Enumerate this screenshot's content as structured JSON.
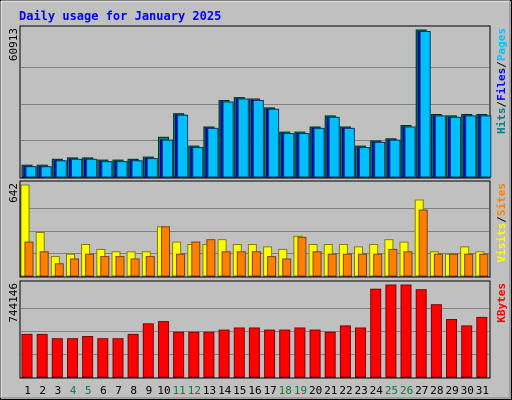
{
  "chart_data": {
    "type": "bar",
    "title": "Daily usage for January 2025",
    "categories": [
      "1",
      "2",
      "3",
      "4",
      "5",
      "6",
      "7",
      "8",
      "9",
      "10",
      "11",
      "12",
      "13",
      "14",
      "15",
      "16",
      "17",
      "18",
      "19",
      "20",
      "21",
      "22",
      "23",
      "24",
      "25",
      "26",
      "27",
      "28",
      "29",
      "30",
      "31"
    ],
    "weekend_days": [
      "4",
      "5",
      "11",
      "12",
      "18",
      "19",
      "25",
      "26"
    ],
    "panels": [
      {
        "name": "top",
        "ymax_label": "60913",
        "ylim": [
          0,
          60913
        ],
        "right_labels": [
          "Pages",
          "Files",
          "Hits"
        ],
        "series": [
          {
            "name": "Hits",
            "color": "#00805c",
            "values": [
              4876,
              4876,
              7316,
              7925,
              7925,
              7011,
              7011,
              7316,
              8230,
              16460,
              26214,
              12802,
              20728,
              31700,
              32918,
              32308,
              28651,
              18593,
              18593,
              20728,
              25299,
              20728,
              12802,
              14935,
              15849,
              21338,
              60913,
              25909,
              25299,
              25909,
              25909
            ]
          },
          {
            "name": "Files",
            "color": "#0000ff",
            "values": [
              4267,
              4267,
              6706,
              7316,
              7316,
              6401,
              6401,
              6706,
              7620,
              15240,
              25604,
              12192,
              20118,
              31090,
              32308,
              31700,
              28042,
              17983,
              17983,
              20118,
              24690,
              20118,
              12192,
              14326,
              15240,
              20728,
              60303,
              25299,
              24690,
              25299,
              25299
            ]
          },
          {
            "name": "Pages",
            "color": "#00bfff",
            "values": [
              4267,
              4267,
              6706,
              7316,
              7316,
              6401,
              6401,
              6706,
              7620,
              15240,
              25604,
              12192,
              20118,
              31090,
              32308,
              31700,
              28042,
              17983,
              17983,
              20118,
              24690,
              20118,
              12192,
              14326,
              15240,
              20728,
              60303,
              25299,
              24690,
              25299,
              25299
            ]
          }
        ]
      },
      {
        "name": "middle",
        "ymax_label": "642",
        "ylim": [
          0,
          642
        ],
        "right_labels": [
          "Sites",
          "Visits"
        ],
        "series": [
          {
            "name": "Visits",
            "color": "#ffff00",
            "values": [
              642,
              307,
              137,
              154,
              222,
              188,
              171,
              171,
              171,
              347,
              239,
              222,
              222,
              256,
              222,
              222,
              205,
              188,
              280,
              222,
              222,
              222,
              205,
              222,
              256,
              239,
              536,
              171,
              154,
              205,
              171
            ]
          },
          {
            "name": "Sites",
            "color": "#ff8000",
            "values": [
              239,
              171,
              86,
              120,
              154,
              137,
              137,
              120,
              137,
              347,
              154,
              239,
              256,
              171,
              171,
              171,
              137,
              120,
              273,
              171,
              154,
              154,
              154,
              154,
              188,
              171,
              465,
              154,
              154,
              154,
              154
            ]
          }
        ]
      },
      {
        "name": "bottom",
        "ymax_label": "744146",
        "ylim": [
          0,
          744146
        ],
        "right_labels": [
          "KBytes"
        ],
        "series": [
          {
            "name": "KBytes",
            "color": "#ff0000",
            "values": [
              344562,
              344562,
              310106,
              310106,
              327334,
              310106,
              310106,
              344562,
              430703,
              447931,
              361790,
              361790,
              361790,
              379018,
              396246,
              396246,
              379018,
              379018,
              396246,
              379018,
              361790,
              413474,
              396246,
              710000,
              744146,
              744146,
              706000,
              585000,
              465000,
              413474,
              482386
            ]
          }
        ]
      }
    ]
  }
}
